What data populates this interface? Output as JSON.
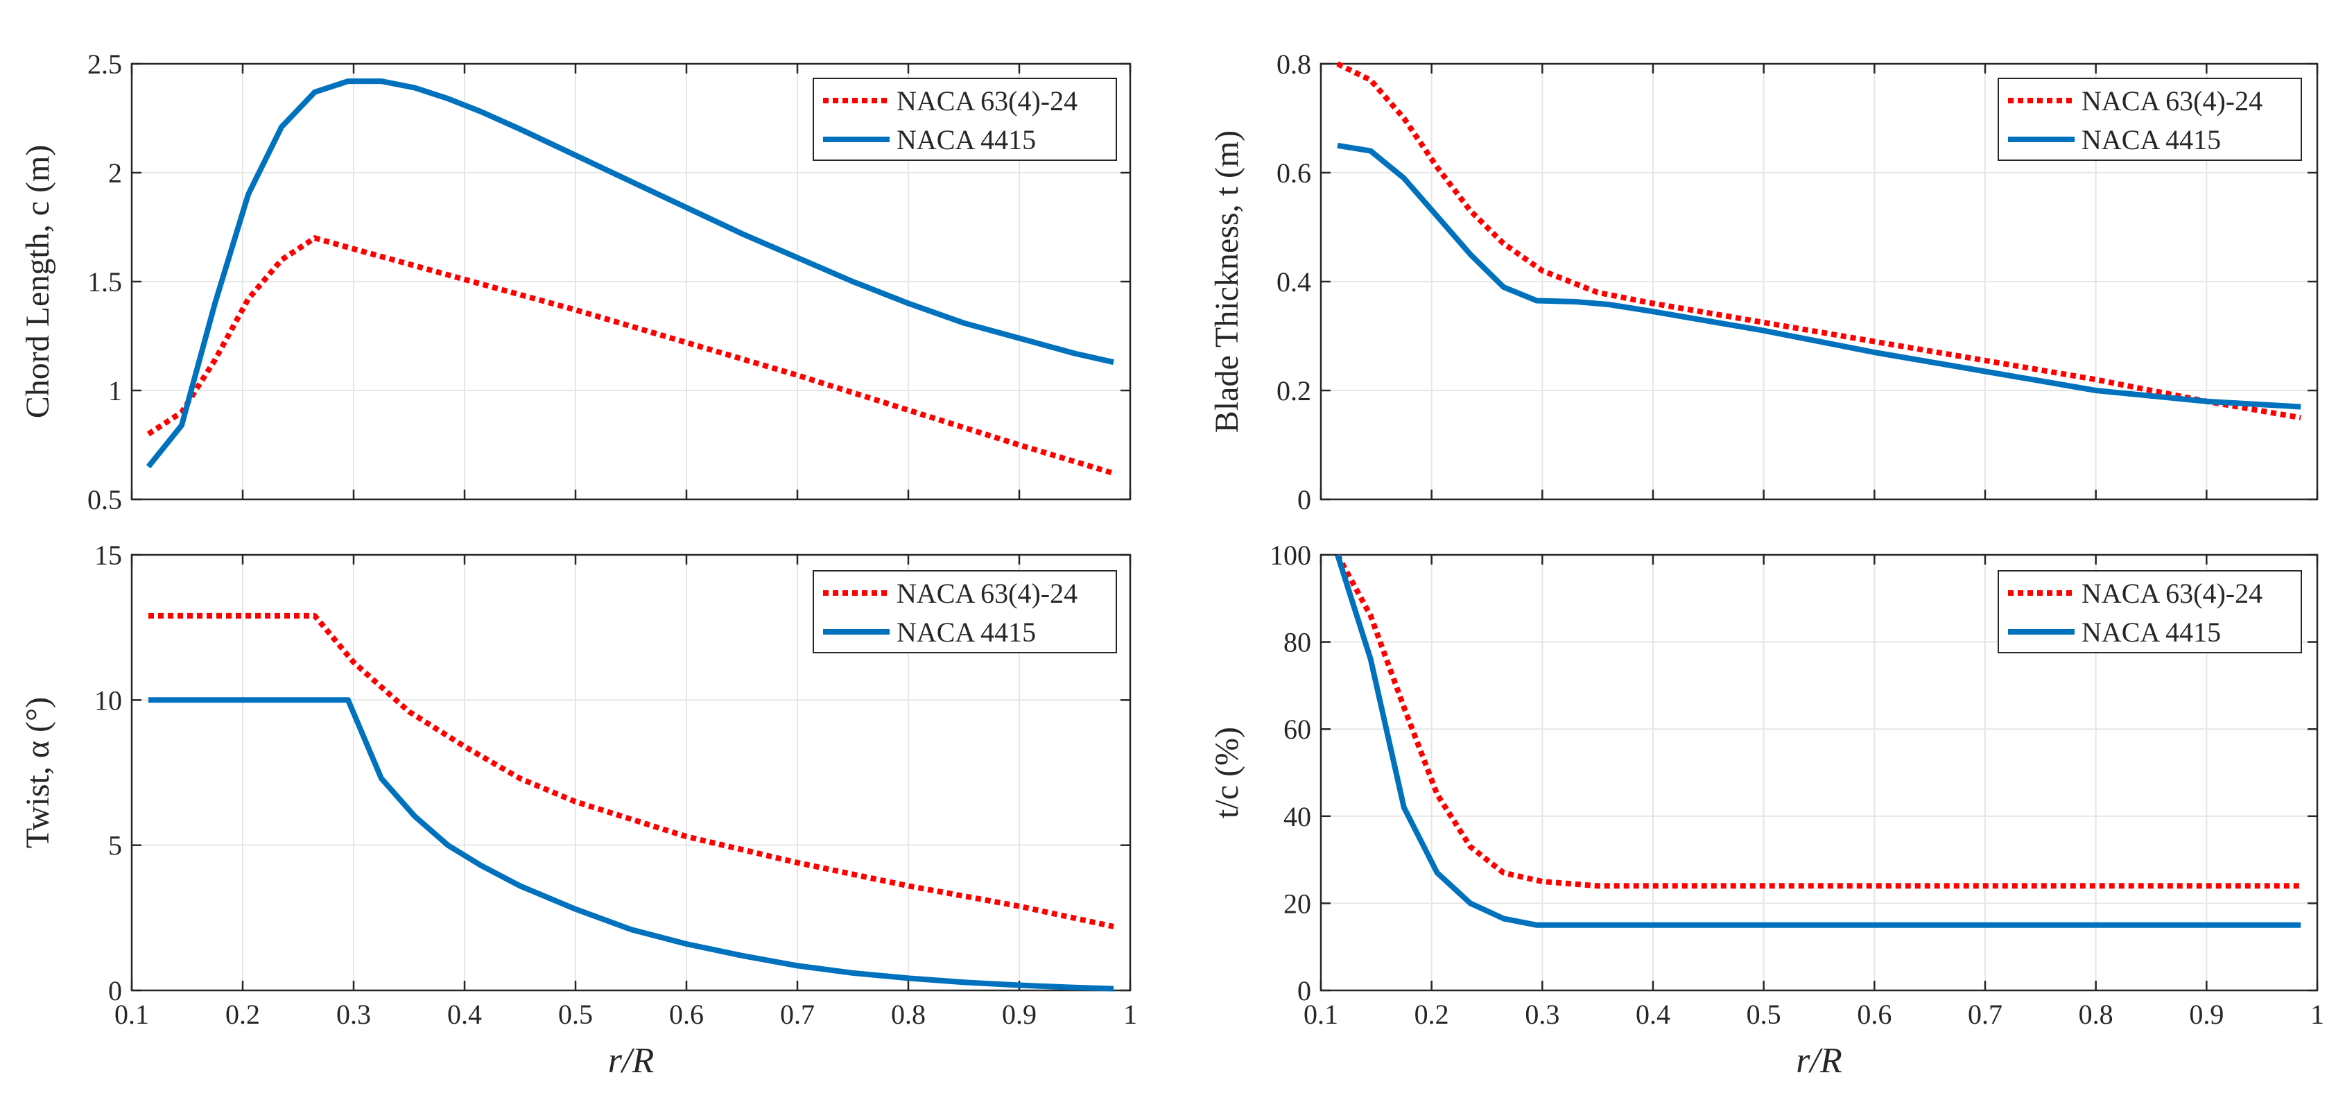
{
  "colors": {
    "series_1": "#ff0000",
    "series_2": "#0072bd",
    "grid": "#e6e6e6",
    "axis": "#262626"
  },
  "chart_data": [
    {
      "type": "line",
      "panel": "top-left",
      "ylabel": "Chord Length, c (m)",
      "xlabel": "",
      "xlim": [
        0.1,
        1
      ],
      "ylim": [
        0.5,
        2.5
      ],
      "xticks": [
        "0.1",
        "0.2",
        "0.3",
        "0.4",
        "0.5",
        "0.6",
        "0.7",
        "0.8",
        "0.9",
        "1"
      ],
      "yticks": [
        "0.5",
        "1",
        "1.5",
        "2",
        "2.5"
      ],
      "show_xticklabels": false,
      "grid": true,
      "legend": "top-right",
      "series": [
        {
          "name": "NACA 63(4)-24",
          "style": "dotted",
          "x": [
            0.115,
            0.145,
            0.175,
            0.205,
            0.235,
            0.265,
            0.3,
            0.35,
            0.4,
            0.5,
            0.6,
            0.7,
            0.8,
            0.9,
            0.985
          ],
          "y": [
            0.8,
            0.9,
            1.14,
            1.42,
            1.6,
            1.7,
            1.65,
            1.58,
            1.51,
            1.37,
            1.22,
            1.07,
            0.91,
            0.75,
            0.62
          ]
        },
        {
          "name": "NACA 4415",
          "style": "solid",
          "x": [
            0.115,
            0.145,
            0.175,
            0.205,
            0.235,
            0.265,
            0.295,
            0.325,
            0.355,
            0.385,
            0.415,
            0.45,
            0.5,
            0.55,
            0.6,
            0.65,
            0.7,
            0.75,
            0.8,
            0.85,
            0.9,
            0.95,
            0.985
          ],
          "y": [
            0.65,
            0.84,
            1.4,
            1.9,
            2.21,
            2.37,
            2.42,
            2.42,
            2.39,
            2.34,
            2.28,
            2.2,
            2.08,
            1.96,
            1.84,
            1.72,
            1.61,
            1.5,
            1.4,
            1.31,
            1.24,
            1.17,
            1.13
          ]
        }
      ]
    },
    {
      "type": "line",
      "panel": "top-right",
      "ylabel": "Blade Thickness, t (m)",
      "xlabel": "",
      "xlim": [
        0.1,
        1
      ],
      "ylim": [
        0,
        0.8
      ],
      "xticks": [
        "0.1",
        "0.2",
        "0.3",
        "0.4",
        "0.5",
        "0.6",
        "0.7",
        "0.8",
        "0.9",
        "1"
      ],
      "yticks": [
        "0",
        "0.2",
        "0.4",
        "0.6",
        "0.8"
      ],
      "show_xticklabels": false,
      "grid": true,
      "legend": "top-right",
      "series": [
        {
          "name": "NACA 63(4)-24",
          "style": "dotted",
          "x": [
            0.115,
            0.145,
            0.175,
            0.205,
            0.235,
            0.265,
            0.3,
            0.35,
            0.4,
            0.5,
            0.6,
            0.7,
            0.8,
            0.9,
            0.985
          ],
          "y": [
            0.8,
            0.77,
            0.7,
            0.61,
            0.53,
            0.47,
            0.42,
            0.38,
            0.36,
            0.325,
            0.29,
            0.255,
            0.22,
            0.18,
            0.15
          ]
        },
        {
          "name": "NACA 4415",
          "style": "solid",
          "x": [
            0.115,
            0.145,
            0.175,
            0.205,
            0.235,
            0.265,
            0.295,
            0.33,
            0.36,
            0.4,
            0.5,
            0.6,
            0.7,
            0.8,
            0.9,
            0.985
          ],
          "y": [
            0.65,
            0.64,
            0.59,
            0.52,
            0.45,
            0.39,
            0.365,
            0.363,
            0.358,
            0.345,
            0.31,
            0.27,
            0.235,
            0.2,
            0.18,
            0.17
          ]
        }
      ]
    },
    {
      "type": "line",
      "panel": "bottom-left",
      "ylabel": "Twist, α (°)",
      "xlabel": "r/R",
      "xlim": [
        0.1,
        1
      ],
      "ylim": [
        0,
        15
      ],
      "xticks": [
        "0.1",
        "0.2",
        "0.3",
        "0.4",
        "0.5",
        "0.6",
        "0.7",
        "0.8",
        "0.9",
        "1"
      ],
      "yticks": [
        "0",
        "5",
        "10",
        "15"
      ],
      "show_xticklabels": true,
      "grid": true,
      "legend": "top-right",
      "series": [
        {
          "name": "NACA 63(4)-24",
          "style": "dotted",
          "x": [
            0.115,
            0.2,
            0.265,
            0.3,
            0.35,
            0.4,
            0.45,
            0.5,
            0.6,
            0.7,
            0.8,
            0.9,
            0.985
          ],
          "y": [
            12.9,
            12.9,
            12.9,
            11.3,
            9.6,
            8.4,
            7.3,
            6.5,
            5.3,
            4.4,
            3.6,
            2.9,
            2.2
          ]
        },
        {
          "name": "NACA 4415",
          "style": "solid",
          "x": [
            0.115,
            0.2,
            0.295,
            0.325,
            0.355,
            0.385,
            0.415,
            0.45,
            0.5,
            0.55,
            0.6,
            0.65,
            0.7,
            0.75,
            0.8,
            0.85,
            0.9,
            0.95,
            0.985
          ],
          "y": [
            10,
            10,
            10,
            7.3,
            6,
            5,
            4.3,
            3.6,
            2.8,
            2.1,
            1.6,
            1.2,
            0.85,
            0.6,
            0.42,
            0.28,
            0.18,
            0.1,
            0.06
          ]
        }
      ]
    },
    {
      "type": "line",
      "panel": "bottom-right",
      "ylabel": "t/c (%)",
      "xlabel": "r/R",
      "xlim": [
        0.1,
        1
      ],
      "ylim": [
        0,
        100
      ],
      "xticks": [
        "0.1",
        "0.2",
        "0.3",
        "0.4",
        "0.5",
        "0.6",
        "0.7",
        "0.8",
        "0.9",
        "1"
      ],
      "yticks": [
        "0",
        "20",
        "40",
        "60",
        "80",
        "100"
      ],
      "show_xticklabels": true,
      "grid": true,
      "legend": "top-right",
      "series": [
        {
          "name": "NACA 63(4)-24",
          "style": "dotted",
          "x": [
            0.115,
            0.145,
            0.175,
            0.205,
            0.235,
            0.265,
            0.3,
            0.35,
            0.4,
            0.6,
            0.8,
            0.985
          ],
          "y": [
            100,
            86,
            65,
            45,
            33,
            27,
            25,
            24,
            24,
            24,
            24,
            24
          ]
        },
        {
          "name": "NACA 4415",
          "style": "solid",
          "x": [
            0.115,
            0.145,
            0.175,
            0.205,
            0.235,
            0.265,
            0.295,
            0.35,
            0.5,
            0.7,
            0.9,
            0.985
          ],
          "y": [
            100,
            76,
            42,
            27,
            20,
            16.5,
            15,
            15,
            15,
            15,
            15,
            15
          ]
        }
      ]
    }
  ]
}
